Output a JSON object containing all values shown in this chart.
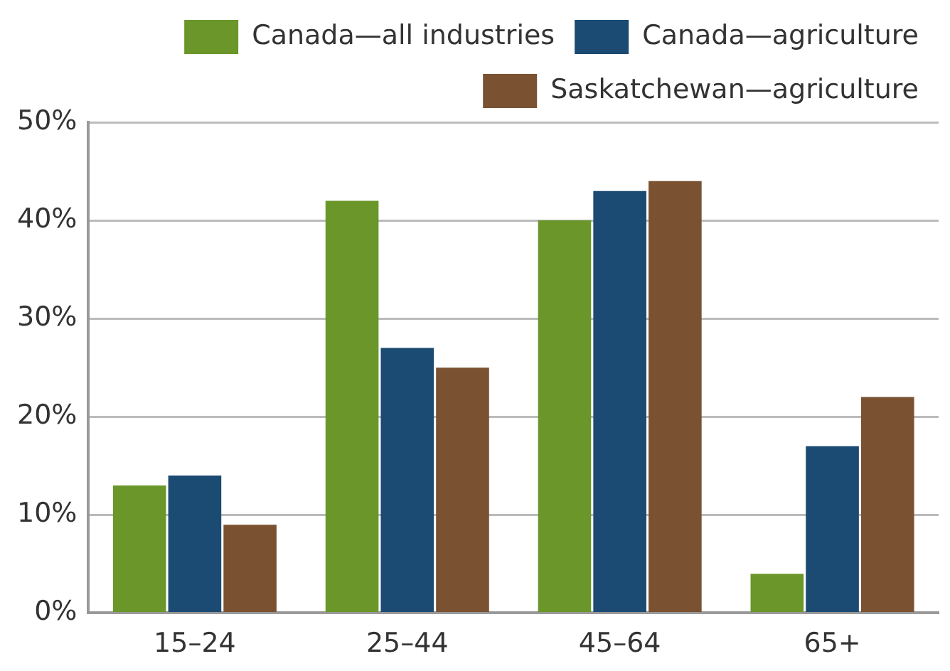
{
  "chart_data": {
    "type": "bar",
    "categories": [
      "15–24",
      "25–44",
      "45–64",
      "65+"
    ],
    "series": [
      {
        "name": "Canada—all industries",
        "color": "#6a962a",
        "values": [
          13,
          42,
          40,
          4
        ]
      },
      {
        "name": "Canada—agriculture",
        "color": "#1b4a72",
        "values": [
          14,
          27,
          43,
          17
        ]
      },
      {
        "name": "Saskatchewan—agriculture",
        "color": "#7a5232",
        "values": [
          9,
          25,
          44,
          22
        ]
      }
    ],
    "ylim": [
      0,
      50
    ],
    "yticks": [
      {
        "value": 0,
        "label": "0%"
      },
      {
        "value": 10,
        "label": "10%"
      },
      {
        "value": 20,
        "label": "20%"
      },
      {
        "value": 30,
        "label": "30%"
      },
      {
        "value": 40,
        "label": "40%"
      },
      {
        "value": 50,
        "label": "50%"
      }
    ],
    "grid": "y",
    "legend": "top"
  }
}
